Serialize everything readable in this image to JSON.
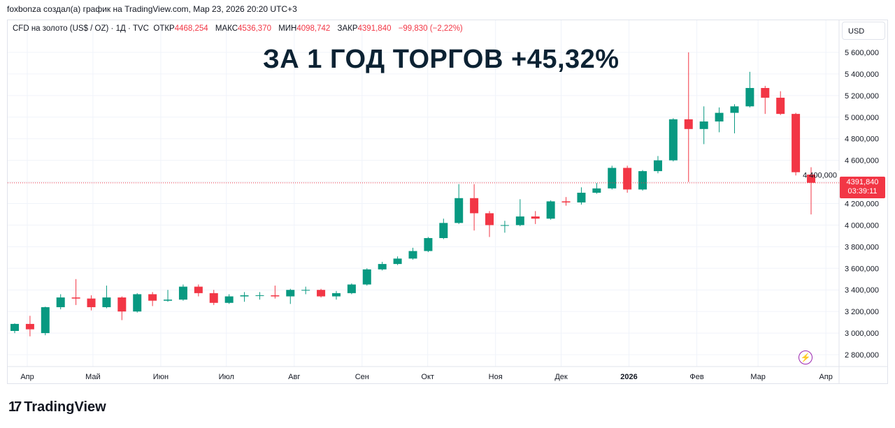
{
  "credit": "foxbonza создал(а) график на TradingView.com, Мар 23, 2026 20:20 UTC+3",
  "legend": {
    "symbol": "CFD на золото (US$ / OZ) · 1Д · TVC",
    "open_label": "ОТКР",
    "open": "4468,254",
    "high_label": "МАКС",
    "high": "4536,370",
    "low_label": "МИН",
    "low": "4098,742",
    "close_label": "ЗАКР",
    "close": "4391,840",
    "change": "−99,830 (−2,22%)"
  },
  "headline": "ЗА 1 ГОД ТОРГОВ +45,32%",
  "currency_button": "USD",
  "last_price": {
    "value": "4391,840",
    "countdown": "03:39:11",
    "color": "#f23645"
  },
  "brand": "TradingView",
  "colors": {
    "up": "#089981",
    "down": "#f23645",
    "grid": "#f0f3fa"
  },
  "icons": {
    "alert": "lightning-icon"
  },
  "chart_data": {
    "type": "candlestick",
    "title": "",
    "ylim": [
      2800,
      5600
    ],
    "y_ticks": [
      2800,
      3000,
      3200,
      3400,
      3600,
      3800,
      4000,
      4200,
      4400,
      4600,
      4800,
      5000,
      5200,
      5400,
      5600
    ],
    "y_tick_labels": [
      "2 800,000",
      "3 000,000",
      "3 200,000",
      "3 400,000",
      "3 600,000",
      "3 800,000",
      "4 000,000",
      "4 200,000",
      "4 400,000",
      "4 600,000",
      "4 800,000",
      "5 000,000",
      "5 200,000",
      "5 400,000",
      "5 600,000"
    ],
    "x_ticks": [
      {
        "date": "2025-04-01",
        "label": "Апр"
      },
      {
        "date": "2025-05-01",
        "label": "Май"
      },
      {
        "date": "2025-06-01",
        "label": "Июн"
      },
      {
        "date": "2025-07-01",
        "label": "Июл"
      },
      {
        "date": "2025-08-01",
        "label": "Авг"
      },
      {
        "date": "2025-09-01",
        "label": "Сен"
      },
      {
        "date": "2025-10-01",
        "label": "Окт"
      },
      {
        "date": "2025-11-01",
        "label": "Ноя"
      },
      {
        "date": "2025-12-01",
        "label": "Дек"
      },
      {
        "date": "2026-01-01",
        "label": "2026"
      },
      {
        "date": "2026-02-01",
        "label": "Фев"
      },
      {
        "date": "2026-03-01",
        "label": "Мар"
      },
      {
        "date": "2026-04-01",
        "label": "Апр"
      }
    ],
    "xlim": [
      "2025-03-24",
      "2026-03-23"
    ],
    "last_close": 4391.84,
    "candles": [
      [
        "2025-03-24",
        3020,
        3090,
        3000,
        3085
      ],
      [
        "2025-03-31",
        3085,
        3160,
        2970,
        3035
      ],
      [
        "2025-04-07",
        3000,
        3245,
        2980,
        3240
      ],
      [
        "2025-04-14",
        3240,
        3360,
        3220,
        3330
      ],
      [
        "2025-04-21",
        3330,
        3500,
        3260,
        3320
      ],
      [
        "2025-04-28",
        3320,
        3350,
        3210,
        3240
      ],
      [
        "2025-05-05",
        3240,
        3440,
        3230,
        3330
      ],
      [
        "2025-05-12",
        3330,
        3340,
        3120,
        3200
      ],
      [
        "2025-05-19",
        3200,
        3370,
        3190,
        3360
      ],
      [
        "2025-05-26",
        3360,
        3380,
        3250,
        3300
      ],
      [
        "2025-06-02",
        3300,
        3400,
        3290,
        3310
      ],
      [
        "2025-06-09",
        3310,
        3450,
        3300,
        3430
      ],
      [
        "2025-06-16",
        3430,
        3450,
        3340,
        3370
      ],
      [
        "2025-06-23",
        3370,
        3400,
        3260,
        3280
      ],
      [
        "2025-06-30",
        3280,
        3360,
        3270,
        3340
      ],
      [
        "2025-07-07",
        3340,
        3380,
        3290,
        3350
      ],
      [
        "2025-07-14",
        3350,
        3380,
        3310,
        3350
      ],
      [
        "2025-07-21",
        3350,
        3440,
        3320,
        3340
      ],
      [
        "2025-07-28",
        3340,
        3410,
        3270,
        3400
      ],
      [
        "2025-08-04",
        3400,
        3430,
        3360,
        3400
      ],
      [
        "2025-08-11",
        3400,
        3410,
        3330,
        3340
      ],
      [
        "2025-08-18",
        3340,
        3390,
        3310,
        3370
      ],
      [
        "2025-08-25",
        3370,
        3460,
        3360,
        3450
      ],
      [
        "2025-09-01",
        3450,
        3600,
        3440,
        3590
      ],
      [
        "2025-09-08",
        3590,
        3660,
        3580,
        3640
      ],
      [
        "2025-09-15",
        3640,
        3710,
        3630,
        3690
      ],
      [
        "2025-09-22",
        3690,
        3790,
        3680,
        3760
      ],
      [
        "2025-09-29",
        3760,
        3890,
        3750,
        3880
      ],
      [
        "2025-10-06",
        3880,
        4060,
        3870,
        4020
      ],
      [
        "2025-10-13",
        4020,
        4380,
        4010,
        4250
      ],
      [
        "2025-10-20",
        4250,
        4380,
        3950,
        4110
      ],
      [
        "2025-10-27",
        4110,
        4130,
        3890,
        4000
      ],
      [
        "2025-11-03",
        4000,
        4040,
        3930,
        4000
      ],
      [
        "2025-11-10",
        4000,
        4240,
        3990,
        4080
      ],
      [
        "2025-11-17",
        4080,
        4130,
        4010,
        4060
      ],
      [
        "2025-11-24",
        4060,
        4230,
        4050,
        4220
      ],
      [
        "2025-12-01",
        4220,
        4260,
        4180,
        4210
      ],
      [
        "2025-12-08",
        4210,
        4350,
        4190,
        4300
      ],
      [
        "2025-12-15",
        4300,
        4390,
        4290,
        4340
      ],
      [
        "2025-12-22",
        4340,
        4550,
        4330,
        4530
      ],
      [
        "2025-12-29",
        4530,
        4550,
        4300,
        4330
      ],
      [
        "2026-01-05",
        4330,
        4510,
        4320,
        4500
      ],
      [
        "2026-01-12",
        4500,
        4640,
        4480,
        4600
      ],
      [
        "2026-01-19",
        4600,
        4990,
        4590,
        4980
      ],
      [
        "2026-01-26",
        4980,
        5600,
        4400,
        4890
      ],
      [
        "2026-02-02",
        4890,
        5100,
        4750,
        4960
      ],
      [
        "2026-02-09",
        4960,
        5090,
        4860,
        5040
      ],
      [
        "2026-02-16",
        5040,
        5120,
        4850,
        5100
      ],
      [
        "2026-02-23",
        5100,
        5420,
        5090,
        5270
      ],
      [
        "2026-03-02",
        5270,
        5290,
        5030,
        5180
      ],
      [
        "2026-03-09",
        5180,
        5240,
        5020,
        5030
      ],
      [
        "2026-03-16",
        5030,
        5040,
        4460,
        4490
      ],
      [
        "2026-03-23",
        4468,
        4536,
        4099,
        4392
      ]
    ]
  }
}
